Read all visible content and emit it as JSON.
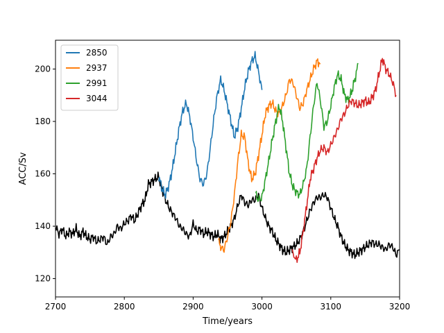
{
  "chart_data": {
    "type": "line",
    "title": "",
    "xlabel": "Time/years",
    "ylabel": "ACC/Sv",
    "xlim": [
      2700,
      3200
    ],
    "ylim": [
      113,
      211
    ],
    "xticks": [
      2700,
      2800,
      2900,
      3000,
      3100,
      3200
    ],
    "yticks": [
      120,
      140,
      160,
      180,
      200
    ],
    "grid": false,
    "legend": {
      "placement": "top-left",
      "entries": [
        "2850",
        "2937",
        "2991",
        "3044"
      ]
    },
    "series": [
      {
        "name": "",
        "color": "#000000",
        "points": [
          [
            2700,
            140
          ],
          [
            2705,
            137
          ],
          [
            2710,
            139
          ],
          [
            2715,
            136
          ],
          [
            2720,
            138
          ],
          [
            2725,
            137
          ],
          [
            2730,
            139
          ],
          [
            2735,
            136
          ],
          [
            2740,
            138
          ],
          [
            2745,
            136
          ],
          [
            2750,
            135
          ],
          [
            2755,
            136
          ],
          [
            2760,
            134
          ],
          [
            2765,
            135
          ],
          [
            2770,
            136
          ],
          [
            2775,
            133
          ],
          [
            2780,
            136
          ],
          [
            2785,
            137
          ],
          [
            2790,
            140
          ],
          [
            2795,
            139
          ],
          [
            2800,
            141
          ],
          [
            2805,
            142
          ],
          [
            2810,
            144
          ],
          [
            2815,
            142
          ],
          [
            2820,
            145
          ],
          [
            2825,
            148
          ],
          [
            2830,
            150
          ],
          [
            2835,
            156
          ],
          [
            2840,
            157
          ],
          [
            2845,
            158
          ],
          [
            2850,
            159
          ],
          [
            2855,
            154
          ],
          [
            2860,
            150
          ],
          [
            2865,
            147
          ],
          [
            2870,
            145
          ],
          [
            2875,
            143
          ],
          [
            2880,
            140
          ],
          [
            2885,
            139
          ],
          [
            2890,
            137
          ],
          [
            2895,
            136
          ],
          [
            2900,
            141
          ],
          [
            2905,
            138
          ],
          [
            2910,
            139
          ],
          [
            2915,
            137
          ],
          [
            2920,
            138
          ],
          [
            2925,
            137
          ],
          [
            2930,
            136
          ],
          [
            2935,
            137
          ],
          [
            2940,
            135
          ],
          [
            2945,
            136
          ],
          [
            2950,
            138
          ],
          [
            2955,
            140
          ],
          [
            2960,
            143
          ],
          [
            2965,
            148
          ],
          [
            2970,
            152
          ],
          [
            2975,
            149
          ],
          [
            2980,
            148
          ],
          [
            2985,
            150
          ],
          [
            2990,
            150
          ],
          [
            2995,
            152
          ],
          [
            3000,
            147
          ],
          [
            3005,
            143
          ],
          [
            3010,
            140
          ],
          [
            3015,
            138
          ],
          [
            3020,
            135
          ],
          [
            3025,
            133
          ],
          [
            3030,
            131
          ],
          [
            3035,
            130
          ],
          [
            3040,
            131
          ],
          [
            3045,
            132
          ],
          [
            3050,
            133
          ],
          [
            3055,
            135
          ],
          [
            3060,
            138
          ],
          [
            3065,
            142
          ],
          [
            3070,
            146
          ],
          [
            3075,
            149
          ],
          [
            3080,
            151
          ],
          [
            3085,
            151
          ],
          [
            3090,
            152
          ],
          [
            3095,
            151
          ],
          [
            3100,
            147
          ],
          [
            3105,
            143
          ],
          [
            3110,
            140
          ],
          [
            3115,
            136
          ],
          [
            3120,
            133
          ],
          [
            3125,
            131
          ],
          [
            3130,
            130
          ],
          [
            3135,
            129
          ],
          [
            3140,
            130
          ],
          [
            3145,
            131
          ],
          [
            3150,
            132
          ],
          [
            3155,
            133
          ],
          [
            3160,
            134
          ],
          [
            3165,
            133
          ],
          [
            3170,
            133
          ],
          [
            3175,
            132
          ],
          [
            3180,
            131
          ],
          [
            3185,
            133
          ],
          [
            3190,
            132
          ],
          [
            3195,
            129
          ],
          [
            3200,
            131
          ]
        ]
      },
      {
        "name": "2850",
        "color": "#1f77b4",
        "points": [
          [
            2850,
            159
          ],
          [
            2855,
            154
          ],
          [
            2860,
            152
          ],
          [
            2865,
            156
          ],
          [
            2870,
            162
          ],
          [
            2875,
            170
          ],
          [
            2880,
            178
          ],
          [
            2885,
            184
          ],
          [
            2890,
            187
          ],
          [
            2895,
            182
          ],
          [
            2900,
            174
          ],
          [
            2905,
            165
          ],
          [
            2910,
            158
          ],
          [
            2915,
            156
          ],
          [
            2920,
            160
          ],
          [
            2925,
            170
          ],
          [
            2930,
            181
          ],
          [
            2935,
            190
          ],
          [
            2940,
            196
          ],
          [
            2945,
            192
          ],
          [
            2950,
            186
          ],
          [
            2955,
            180
          ],
          [
            2960,
            174
          ],
          [
            2965,
            178
          ],
          [
            2970,
            185
          ],
          [
            2975,
            193
          ],
          [
            2980,
            199
          ],
          [
            2985,
            203
          ],
          [
            2990,
            205
          ],
          [
            2995,
            199
          ],
          [
            3000,
            192
          ]
        ]
      },
      {
        "name": "2937",
        "color": "#ff7f0e",
        "points": [
          [
            2937,
            134
          ],
          [
            2940,
            132
          ],
          [
            2945,
            131
          ],
          [
            2950,
            136
          ],
          [
            2955,
            142
          ],
          [
            2960,
            152
          ],
          [
            2965,
            165
          ],
          [
            2970,
            175
          ],
          [
            2975,
            174
          ],
          [
            2980,
            164
          ],
          [
            2985,
            158
          ],
          [
            2990,
            160
          ],
          [
            2995,
            167
          ],
          [
            3000,
            175
          ],
          [
            3005,
            183
          ],
          [
            3010,
            186
          ],
          [
            3015,
            187
          ],
          [
            3020,
            184
          ],
          [
            3025,
            183
          ],
          [
            3030,
            186
          ],
          [
            3035,
            190
          ],
          [
            3040,
            196
          ],
          [
            3045,
            195
          ],
          [
            3050,
            190
          ],
          [
            3055,
            185
          ],
          [
            3060,
            187
          ],
          [
            3065,
            192
          ],
          [
            3070,
            196
          ],
          [
            3075,
            200
          ],
          [
            3080,
            203
          ],
          [
            3085,
            202
          ]
        ]
      },
      {
        "name": "2991",
        "color": "#2ca02c",
        "points": [
          [
            2991,
            152
          ],
          [
            2995,
            150
          ],
          [
            3000,
            151
          ],
          [
            3005,
            158
          ],
          [
            3010,
            165
          ],
          [
            3015,
            173
          ],
          [
            3020,
            180
          ],
          [
            3025,
            186
          ],
          [
            3030,
            180
          ],
          [
            3035,
            170
          ],
          [
            3040,
            160
          ],
          [
            3045,
            155
          ],
          [
            3050,
            153
          ],
          [
            3055,
            152
          ],
          [
            3060,
            156
          ],
          [
            3065,
            162
          ],
          [
            3070,
            174
          ],
          [
            3075,
            186
          ],
          [
            3080,
            195
          ],
          [
            3085,
            188
          ],
          [
            3090,
            178
          ],
          [
            3095,
            180
          ],
          [
            3100,
            186
          ],
          [
            3105,
            193
          ],
          [
            3110,
            198
          ],
          [
            3115,
            196
          ],
          [
            3120,
            190
          ],
          [
            3125,
            188
          ],
          [
            3130,
            191
          ],
          [
            3135,
            196
          ],
          [
            3140,
            202
          ]
        ]
      },
      {
        "name": "3044",
        "color": "#d62728",
        "points": [
          [
            3044,
            130
          ],
          [
            3050,
            127
          ],
          [
            3055,
            130
          ],
          [
            3060,
            138
          ],
          [
            3065,
            148
          ],
          [
            3070,
            158
          ],
          [
            3075,
            162
          ],
          [
            3080,
            166
          ],
          [
            3085,
            169
          ],
          [
            3090,
            170
          ],
          [
            3095,
            168
          ],
          [
            3100,
            171
          ],
          [
            3105,
            174
          ],
          [
            3110,
            177
          ],
          [
            3115,
            181
          ],
          [
            3120,
            183
          ],
          [
            3125,
            186
          ],
          [
            3130,
            188
          ],
          [
            3135,
            187
          ],
          [
            3140,
            186
          ],
          [
            3145,
            187
          ],
          [
            3150,
            188
          ],
          [
            3155,
            187
          ],
          [
            3160,
            189
          ],
          [
            3165,
            192
          ],
          [
            3170,
            198
          ],
          [
            3175,
            204
          ],
          [
            3180,
            200
          ],
          [
            3185,
            198
          ],
          [
            3190,
            195
          ],
          [
            3195,
            190
          ]
        ]
      }
    ]
  }
}
